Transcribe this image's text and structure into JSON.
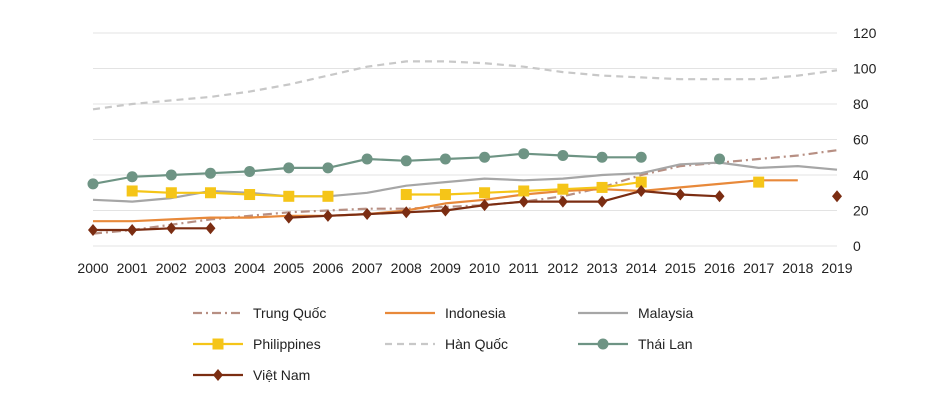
{
  "chart_data": {
    "type": "line",
    "title": "",
    "xlabel": "",
    "ylabel": "",
    "ylim": [
      0,
      120
    ],
    "y_ticks": [
      0,
      20,
      40,
      60,
      80,
      100,
      120
    ],
    "y_axis_side": "right",
    "grid": true,
    "legend_position": "bottom",
    "x": [
      2000,
      2001,
      2002,
      2003,
      2004,
      2005,
      2006,
      2007,
      2008,
      2009,
      2010,
      2011,
      2012,
      2013,
      2014,
      2015,
      2016,
      2017,
      2018,
      2019
    ],
    "x_labels": [
      "2000",
      "2001",
      "2002",
      "2003",
      "2004",
      "2005",
      "2006",
      "2007",
      "2008",
      "2009",
      "2010",
      "2011",
      "2012",
      "2013",
      "2014",
      "2015",
      "2016",
      "2017",
      "2018",
      "2019"
    ],
    "series": [
      {
        "name": "Trung Quốc",
        "color": "#b78f83",
        "line_style": "dashdot",
        "marker": "none",
        "values": [
          7,
          9,
          12,
          15,
          17,
          19,
          20,
          21,
          21,
          22,
          23,
          25,
          28,
          33,
          40,
          45,
          47,
          49,
          51,
          54
        ]
      },
      {
        "name": "Indonesia",
        "color": "#e8893a",
        "line_style": "solid",
        "marker": "none",
        "values": [
          14,
          14,
          15,
          16,
          16,
          17,
          17,
          18,
          20,
          24,
          26,
          29,
          31,
          32,
          31,
          33,
          35,
          37,
          37,
          null
        ]
      },
      {
        "name": "Malaysia",
        "color": "#a6a6a6",
        "line_style": "solid",
        "marker": "none",
        "values": [
          26,
          25,
          27,
          31,
          30,
          28,
          28,
          30,
          34,
          36,
          38,
          37,
          38,
          40,
          41,
          46,
          47,
          44,
          45,
          43
        ]
      },
      {
        "name": "Philippines",
        "color": "#f5c518",
        "line_style": "solid",
        "marker": "square",
        "values": [
          null,
          31,
          30,
          30,
          29,
          28,
          28,
          null,
          29,
          29,
          30,
          31,
          32,
          33,
          36,
          null,
          null,
          36,
          null,
          null
        ]
      },
      {
        "name": "Hàn Quốc",
        "color": "#c8c8c8",
        "line_style": "dashed",
        "marker": "none",
        "values": [
          77,
          80,
          82,
          84,
          87,
          91,
          96,
          101,
          104,
          104,
          103,
          101,
          98,
          96,
          95,
          94,
          94,
          94,
          96,
          99
        ]
      },
      {
        "name": "Thái Lan",
        "color": "#6e9484",
        "line_style": "solid",
        "marker": "circle",
        "values": [
          35,
          39,
          40,
          41,
          42,
          44,
          44,
          49,
          48,
          49,
          50,
          52,
          51,
          50,
          50,
          null,
          49,
          null,
          null,
          null
        ]
      },
      {
        "name": "Việt Nam",
        "color": "#7b2d12",
        "line_style": "solid",
        "marker": "diamond",
        "values": [
          9,
          9,
          10,
          10,
          null,
          16,
          17,
          18,
          19,
          20,
          23,
          25,
          25,
          25,
          31,
          29,
          28,
          null,
          null,
          28
        ]
      }
    ]
  }
}
